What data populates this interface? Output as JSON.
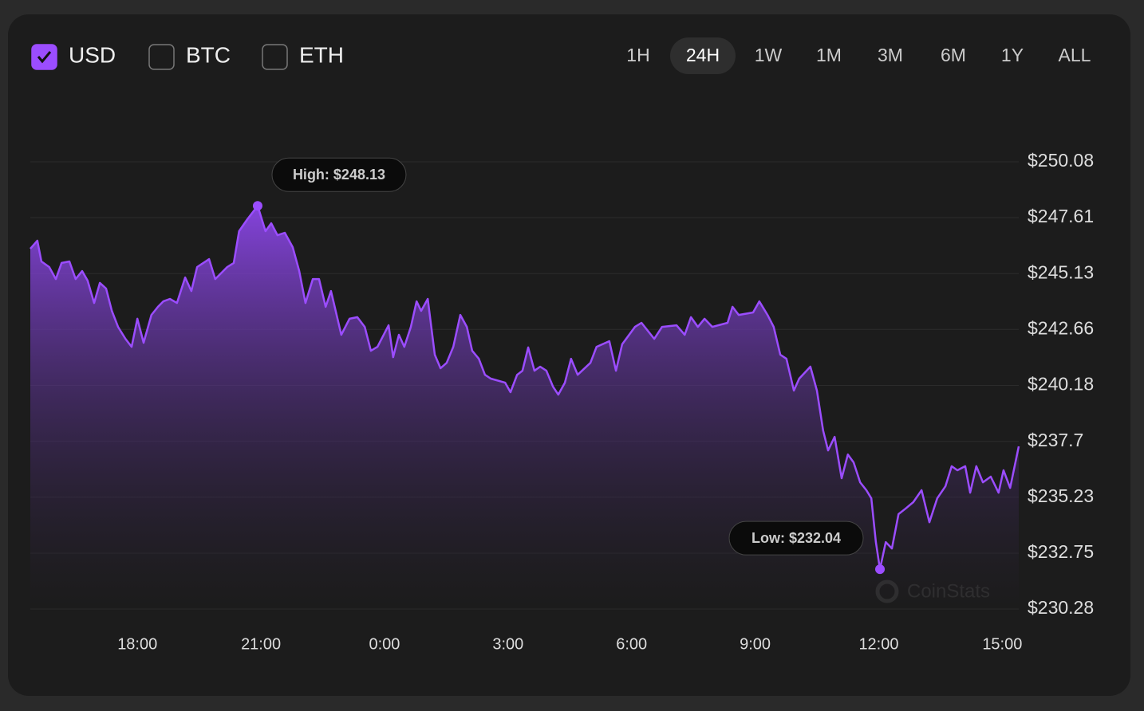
{
  "controls": {
    "currencies": [
      {
        "label": "USD",
        "checked": true
      },
      {
        "label": "BTC",
        "checked": false
      },
      {
        "label": "ETH",
        "checked": false
      }
    ],
    "ranges": [
      "1H",
      "24H",
      "1W",
      "1M",
      "3M",
      "6M",
      "1Y",
      "ALL"
    ],
    "selected_range": "24H"
  },
  "chart_data": {
    "type": "area",
    "color": "#9b4dff",
    "grid": true,
    "x": [
      0,
      0.17,
      0.27,
      0.46,
      0.62,
      0.76,
      0.95,
      1.1,
      1.26,
      1.39,
      1.55,
      1.69,
      1.84,
      1.98,
      2.13,
      2.31,
      2.46,
      2.6,
      2.75,
      2.94,
      3.1,
      3.23,
      3.39,
      3.56,
      3.76,
      3.91,
      4.05,
      4.34,
      4.49,
      4.78,
      4.94,
      5.07,
      5.27,
      5.52,
      5.71,
      5.85,
      6.0,
      6.18,
      6.37,
      6.53,
      6.68,
      6.86,
      7.01,
      7.17,
      7.3,
      7.55,
      7.75,
      7.94,
      8.12,
      8.27,
      8.43,
      8.7,
      8.81,
      8.95,
      9.08,
      9.24,
      9.38,
      9.49,
      9.65,
      9.82,
      9.96,
      10.11,
      10.27,
      10.44,
      10.6,
      10.73,
      10.89,
      11.04,
      11.18,
      11.53,
      11.66,
      11.82,
      11.95,
      12.09,
      12.24,
      12.38,
      12.53,
      12.69,
      12.82,
      12.98,
      13.13,
      13.29,
      13.6,
      13.75,
      14.06,
      14.22,
      14.37,
      14.68,
      14.84,
      15.15,
      15.34,
      15.69,
      15.89,
      16.04,
      16.21,
      16.37,
      16.56,
      16.93,
      17.05,
      17.2,
      17.55,
      17.7,
      17.9,
      18.05,
      18.21,
      18.36,
      18.54,
      18.67,
      18.94,
      19.1,
      19.25,
      19.37,
      19.53,
      19.7,
      19.85,
      19.99,
      20.15,
      20.3,
      20.42,
      20.53,
      20.63,
      20.77,
      20.92,
      21.08,
      21.25,
      21.44,
      21.64,
      21.83,
      22.02,
      22.22,
      22.37,
      22.51,
      22.7,
      22.82,
      22.97,
      23.13,
      23.32,
      23.51,
      23.63,
      23.79,
      24.0
    ],
    "values": [
      246.23,
      246.59,
      245.67,
      245.42,
      244.89,
      245.6,
      245.67,
      244.89,
      245.24,
      244.82,
      243.83,
      244.72,
      244.47,
      243.48,
      242.77,
      242.24,
      241.89,
      243.13,
      242.07,
      243.3,
      243.66,
      243.9,
      244.01,
      243.83,
      244.96,
      244.36,
      245.42,
      245.77,
      244.89,
      245.42,
      245.6,
      247.01,
      247.54,
      248.13,
      247.01,
      247.36,
      246.83,
      246.94,
      246.3,
      245.24,
      243.83,
      244.89,
      244.89,
      243.66,
      244.36,
      242.42,
      243.13,
      243.2,
      242.77,
      241.71,
      241.89,
      242.84,
      241.43,
      242.42,
      241.89,
      242.77,
      243.9,
      243.48,
      244.01,
      241.54,
      240.94,
      241.18,
      241.89,
      243.3,
      242.77,
      241.71,
      241.36,
      240.65,
      240.48,
      240.3,
      239.88,
      240.65,
      240.83,
      241.86,
      240.83,
      241.01,
      240.83,
      240.13,
      239.77,
      240.3,
      241.36,
      240.65,
      241.18,
      241.89,
      242.14,
      240.83,
      242.0,
      242.77,
      242.95,
      242.24,
      242.77,
      242.84,
      242.42,
      243.2,
      242.77,
      243.13,
      242.77,
      242.95,
      243.66,
      243.3,
      243.41,
      243.9,
      243.3,
      242.77,
      241.54,
      241.36,
      239.95,
      240.48,
      241.01,
      239.95,
      238.18,
      237.3,
      237.9,
      236.07,
      237.12,
      236.77,
      235.89,
      235.54,
      235.18,
      233.24,
      232.04,
      233.24,
      232.96,
      234.48,
      234.72,
      235.01,
      235.54,
      234.12,
      235.18,
      235.71,
      236.6,
      236.42,
      236.6,
      235.43,
      236.6,
      235.89,
      236.14,
      235.43,
      236.42,
      235.64,
      237.48
    ],
    "xlim": [
      0,
      24
    ],
    "xticks": [
      {
        "value": 2.6,
        "label": "18:00"
      },
      {
        "value": 5.6,
        "label": "21:00"
      },
      {
        "value": 8.6,
        "label": "0:00"
      },
      {
        "value": 11.6,
        "label": "3:00"
      },
      {
        "value": 14.6,
        "label": "6:00"
      },
      {
        "value": 17.6,
        "label": "9:00"
      },
      {
        "value": 20.6,
        "label": "12:00"
      },
      {
        "value": 23.6,
        "label": "15:00"
      }
    ],
    "ylim": [
      230.28,
      250.08
    ],
    "yticks": [
      {
        "value": 250.08,
        "label": "$250.08"
      },
      {
        "value": 247.61,
        "label": "$247.61"
      },
      {
        "value": 245.13,
        "label": "$245.13"
      },
      {
        "value": 242.66,
        "label": "$242.66"
      },
      {
        "value": 240.18,
        "label": "$240.18"
      },
      {
        "value": 237.7,
        "label": "$237.7"
      },
      {
        "value": 235.23,
        "label": "$235.23"
      },
      {
        "value": 232.75,
        "label": "$232.75"
      },
      {
        "value": 230.28,
        "label": "$230.28"
      }
    ],
    "annotations": [
      {
        "label": "High: $248.13",
        "x": 5.52,
        "value": 248.13
      },
      {
        "label": "Low: $232.04",
        "x": 20.63,
        "value": 232.04
      }
    ],
    "watermark": "CoinStats"
  }
}
